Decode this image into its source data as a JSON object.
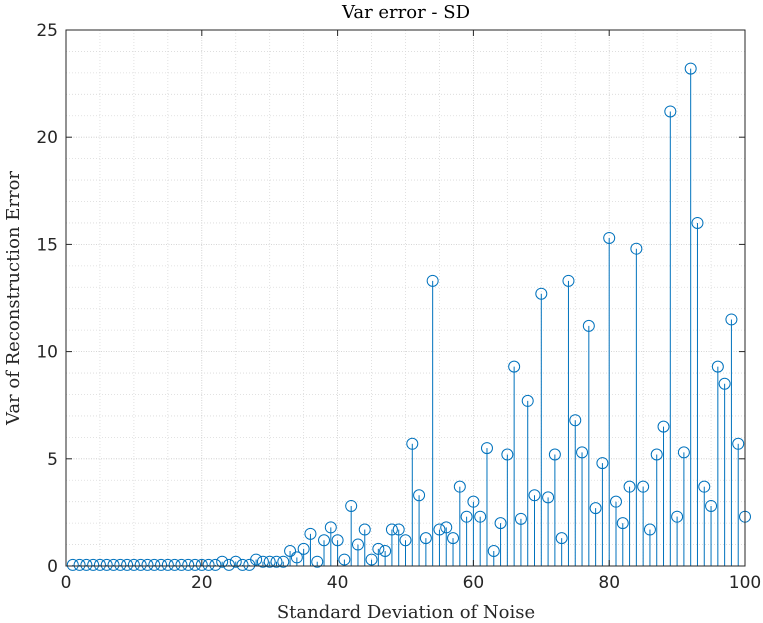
{
  "chart_data": {
    "type": "stem",
    "title": "Var error - SD",
    "xlabel": "Standard Deviation of Noise",
    "ylabel": "Var of Reconstruction Error",
    "xlim": [
      0,
      100
    ],
    "ylim": [
      0,
      25
    ],
    "xticks": [
      0,
      20,
      40,
      60,
      80,
      100
    ],
    "yticks": [
      0,
      5,
      10,
      15,
      20,
      25
    ],
    "grid": true,
    "minor_grid": true,
    "color": "#0072BD",
    "marker": "circle",
    "x": [
      1,
      2,
      3,
      4,
      5,
      6,
      7,
      8,
      9,
      10,
      11,
      12,
      13,
      14,
      15,
      16,
      17,
      18,
      19,
      20,
      21,
      22,
      23,
      24,
      25,
      26,
      27,
      28,
      29,
      30,
      31,
      32,
      33,
      34,
      35,
      36,
      37,
      38,
      39,
      40,
      41,
      42,
      43,
      44,
      45,
      46,
      47,
      48,
      49,
      50,
      51,
      52,
      53,
      54,
      55,
      56,
      57,
      58,
      59,
      60,
      61,
      62,
      63,
      64,
      65,
      66,
      67,
      68,
      69,
      70,
      71,
      72,
      73,
      74,
      75,
      76,
      77,
      78,
      79,
      80,
      81,
      82,
      83,
      84,
      85,
      86,
      87,
      88,
      89,
      90,
      91,
      92,
      93,
      94,
      95,
      96,
      97,
      98,
      99,
      100
    ],
    "y": [
      0.05,
      0.05,
      0.05,
      0.05,
      0.05,
      0.05,
      0.05,
      0.05,
      0.05,
      0.05,
      0.05,
      0.05,
      0.05,
      0.05,
      0.05,
      0.05,
      0.05,
      0.05,
      0.05,
      0.05,
      0.05,
      0.05,
      0.2,
      0.05,
      0.2,
      0.05,
      0.05,
      0.3,
      0.2,
      0.2,
      0.2,
      0.2,
      0.7,
      0.4,
      0.8,
      1.5,
      0.2,
      1.2,
      1.8,
      1.2,
      0.3,
      2.8,
      1.0,
      1.7,
      0.3,
      0.8,
      0.7,
      1.7,
      1.7,
      1.2,
      5.7,
      3.3,
      1.3,
      13.3,
      1.7,
      1.8,
      1.3,
      3.7,
      2.3,
      3.0,
      2.3,
      5.5,
      0.7,
      2.0,
      5.2,
      9.3,
      2.2,
      7.7,
      3.3,
      12.7,
      3.2,
      5.2,
      1.3,
      13.3,
      6.8,
      5.3,
      11.2,
      2.7,
      4.8,
      15.3,
      3.0,
      2.0,
      3.7,
      14.8,
      3.7,
      1.7,
      5.2,
      6.5,
      21.2,
      2.3,
      5.3,
      23.2,
      16.0,
      3.7,
      2.8,
      9.3,
      8.5,
      11.5,
      5.7,
      2.3
    ]
  }
}
